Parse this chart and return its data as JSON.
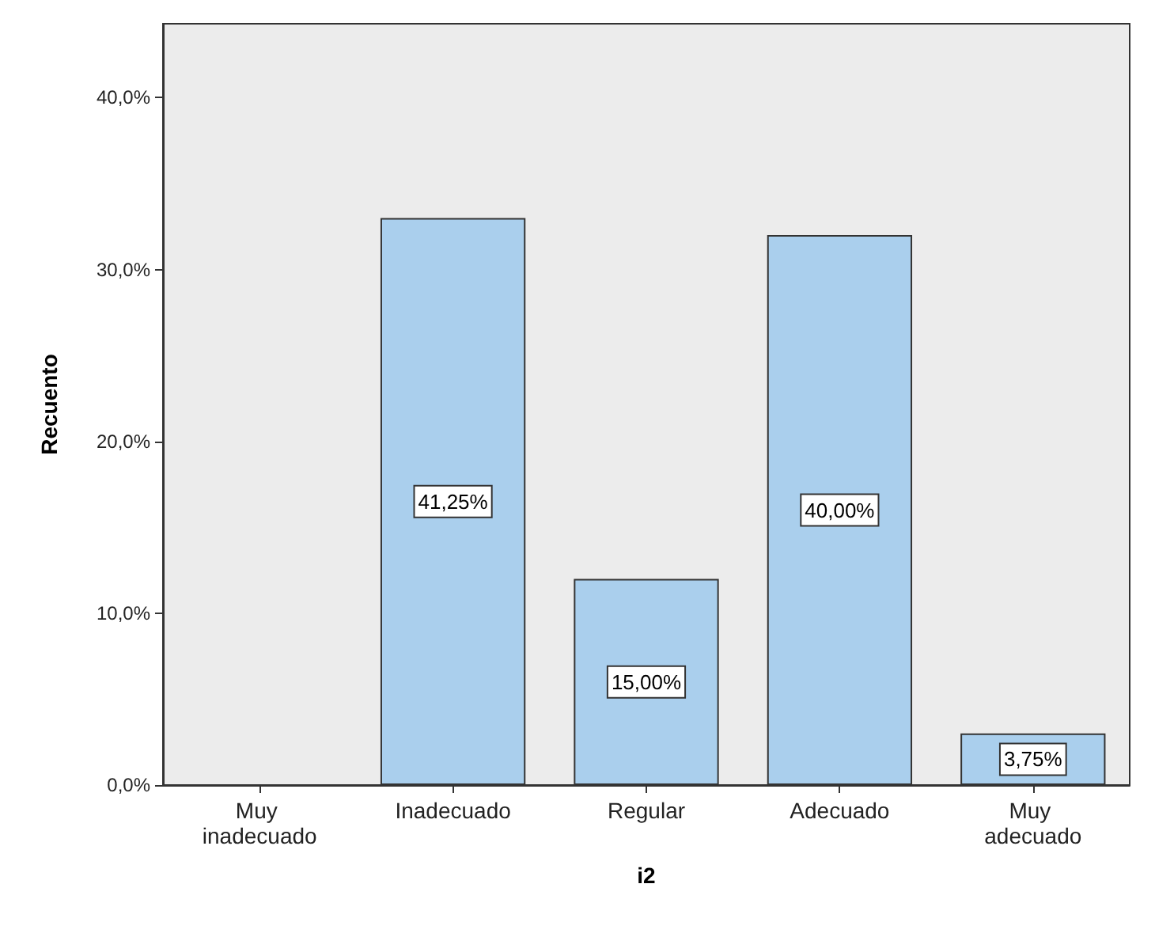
{
  "chart_data": {
    "type": "bar",
    "xlabel": "i2",
    "ylabel": "Recuento",
    "categories": [
      "Muy inadecuado",
      "Inadecuado",
      "Regular",
      "Adecuado",
      "Muy adecuado"
    ],
    "values": [
      0,
      33,
      12,
      32,
      3
    ],
    "color": "#aacfed",
    "ylim": [
      0,
      44.3
    ],
    "yticks": [
      {
        "value": 0,
        "label": "0,0%"
      },
      {
        "value": 10,
        "label": "10,0%"
      },
      {
        "value": 20,
        "label": "20,0%"
      },
      {
        "value": 30,
        "label": "30,0%"
      },
      {
        "value": 40,
        "label": "40,0%"
      }
    ],
    "annotations": [
      "41,25%",
      "15,00%",
      "40,00%",
      "3,75%"
    ],
    "grid": false
  }
}
